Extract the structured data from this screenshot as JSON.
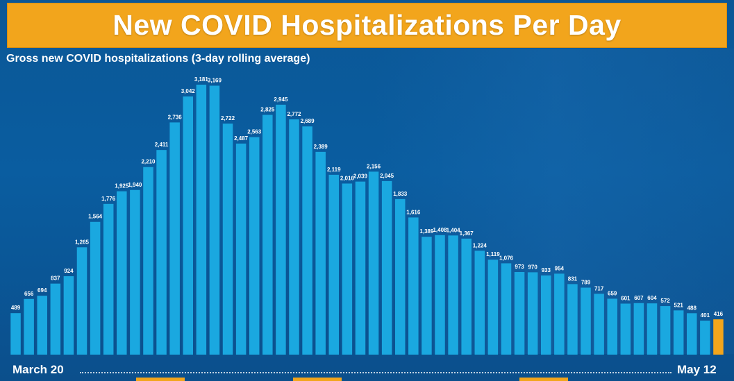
{
  "title": "New COVID Hospitalizations Per Day",
  "colors": {
    "background": "#0a5696",
    "title_bar": "#f2a51c",
    "bar": "#1aa8e0",
    "bar_highlight": "#f2a51c",
    "text": "#ffffff"
  },
  "chart_data": {
    "type": "bar",
    "title": "New COVID Hospitalizations Per Day",
    "subtitle": "Gross new COVID hospitalizations (3-day rolling average)",
    "x_start_label": "March 20",
    "x_end_label": "May 12",
    "values": [
      489,
      656,
      694,
      837,
      924,
      1265,
      1564,
      1776,
      1925,
      1940,
      2210,
      2411,
      2736,
      3042,
      3181,
      3169,
      2722,
      2487,
      2563,
      2825,
      2945,
      2772,
      2689,
      2389,
      2119,
      2016,
      2039,
      2156,
      2045,
      1833,
      1616,
      1389,
      1408,
      1404,
      1367,
      1224,
      1119,
      1076,
      973,
      970,
      933,
      954,
      831,
      789,
      717,
      659,
      601,
      607,
      604,
      572,
      521,
      488,
      401,
      416
    ],
    "value_labels": [
      "489",
      "656",
      "694",
      "837",
      "924",
      "1,265",
      "1,564",
      "1,776",
      "1,925",
      "1,940",
      "2,210",
      "2,411",
      "2,736",
      "3,042",
      "3,181",
      "3,169",
      "2,722",
      "2,487",
      "2,563",
      "2,825",
      "2,945",
      "2,772",
      "2,689",
      "2,389",
      "2,119",
      "2,016",
      "2,039",
      "2,156",
      "2,045",
      "1,833",
      "1,616",
      "1,389",
      "1,408",
      "1,404",
      "1,367",
      "1,224",
      "1,119",
      "1,076",
      "973",
      "970",
      "933",
      "954",
      "831",
      "789",
      "717",
      "659",
      "601",
      "607",
      "604",
      "572",
      "521",
      "488",
      "401",
      "416"
    ],
    "highlight_last": true,
    "ylim": [
      0,
      3181
    ],
    "grid": false,
    "legend": "none"
  }
}
